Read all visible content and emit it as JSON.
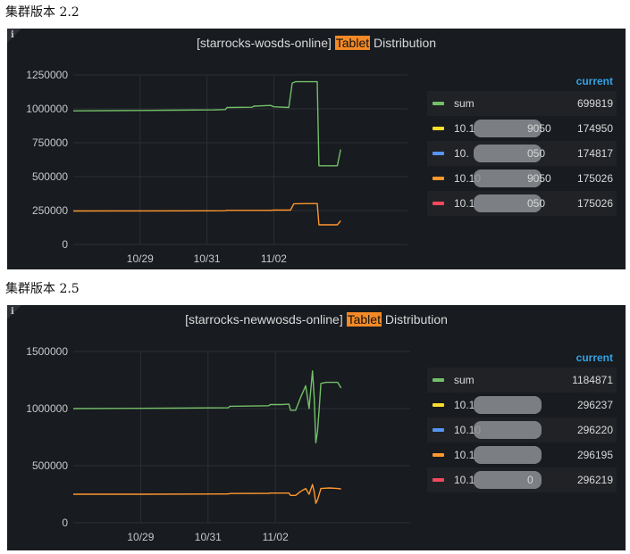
{
  "captions": [
    "集群版本 2.2",
    "集群版本 2.5"
  ],
  "chart_data": [
    {
      "type": "line",
      "title_prefix": "[starrocks-wosds-online] ",
      "title_highlight": "Tablet",
      "title_suffix": " Distribution",
      "ylim": [
        0,
        1250000
      ],
      "yticks": [
        0,
        250000,
        500000,
        750000,
        1000000,
        1250000
      ],
      "ytick_labels": [
        "0",
        "250000",
        "500000",
        "750000",
        "1000000",
        "1250000"
      ],
      "xlim": [
        0,
        10
      ],
      "xticks": [
        2,
        4,
        6
      ],
      "xtick_labels": [
        "10/29",
        "10/31",
        "11/02"
      ],
      "legend_header": "current",
      "series": [
        {
          "name": "sum",
          "color": "#73bf69",
          "current": "699819",
          "x": [
            0,
            2.0,
            3.0,
            4.2,
            4.55,
            4.6,
            5.35,
            5.4,
            5.9,
            6.0,
            6.45,
            6.55,
            6.6,
            6.65,
            6.8,
            7.3,
            7.35,
            7.45,
            7.9,
            8.0
          ],
          "y": [
            985000,
            988000,
            990000,
            992000,
            995000,
            1010000,
            1012000,
            1020000,
            1025000,
            1015000,
            1010000,
            1190000,
            1195000,
            1200000,
            1200000,
            1200000,
            580000,
            580000,
            580000,
            700000
          ]
        },
        {
          "name": "10.1",
          "name_tail": "9050",
          "color": "#fade2a",
          "current": "174950"
        },
        {
          "name": "10.",
          "name_tail": "050",
          "color": "#5794f2",
          "current": "174817"
        },
        {
          "name": "10.10",
          "name_tail": "9050",
          "color": "#ff9830",
          "current": "175026",
          "x": [
            0,
            2.0,
            4.0,
            4.55,
            4.6,
            5.9,
            6.0,
            6.5,
            6.6,
            7.0,
            7.3,
            7.35,
            7.45,
            7.9,
            8.0
          ],
          "y": [
            247000,
            247500,
            248000,
            248500,
            251000,
            251500,
            253000,
            253000,
            300000,
            301000,
            301000,
            145000,
            145000,
            145000,
            175000
          ]
        },
        {
          "name": "10.1",
          "name_tail": "050",
          "color": "#f2495c",
          "current": "175026"
        }
      ]
    },
    {
      "type": "line",
      "title_prefix": "[starrocks-newwosds-online] ",
      "title_highlight": "Tablet",
      "title_suffix": " Distribution",
      "ylim": [
        0,
        1500000
      ],
      "yticks": [
        0,
        500000,
        1000000,
        1500000
      ],
      "ytick_labels": [
        "0",
        "500000",
        "1000000",
        "1500000"
      ],
      "xlim": [
        0,
        10
      ],
      "xticks": [
        2,
        4,
        6
      ],
      "xtick_labels": [
        "10/29",
        "10/31",
        "11/02"
      ],
      "legend_header": "current",
      "series": [
        {
          "name": "sum",
          "color": "#73bf69",
          "current": "1184871",
          "x": [
            0,
            2.0,
            3.0,
            4.6,
            4.65,
            5.8,
            5.85,
            6.2,
            6.4,
            6.45,
            6.6,
            6.75,
            6.9,
            7.0,
            7.1,
            7.15,
            7.2,
            7.25,
            7.3,
            7.35,
            7.5,
            7.7,
            7.85,
            7.95
          ],
          "y": [
            1000000,
            1002000,
            1004000,
            1007000,
            1020000,
            1025000,
            1035000,
            1035000,
            1040000,
            985000,
            985000,
            1100000,
            1200000,
            1000000,
            1330000,
            1100000,
            700000,
            800000,
            1000000,
            1220000,
            1230000,
            1230000,
            1230000,
            1180000
          ]
        },
        {
          "name": "10.1",
          "name_tail": "",
          "color": "#fade2a",
          "current": "296237"
        },
        {
          "name": "10.10",
          "name_tail": "",
          "color": "#5794f2",
          "current": "296220"
        },
        {
          "name": "10.1",
          "name_tail": "",
          "color": "#ff9830",
          "current": "296195",
          "x": [
            0,
            2.0,
            4.6,
            4.65,
            5.8,
            5.85,
            6.2,
            6.4,
            6.45,
            6.6,
            6.75,
            6.9,
            7.0,
            7.1,
            7.15,
            7.2,
            7.25,
            7.35,
            7.6,
            7.85,
            7.95
          ],
          "y": [
            250000,
            250000,
            252000,
            256000,
            258000,
            260000,
            260000,
            260000,
            240000,
            240000,
            275000,
            300000,
            250000,
            335000,
            270000,
            170000,
            200000,
            300000,
            305000,
            300000,
            296000
          ]
        },
        {
          "name": "10.1",
          "name_tail": "0",
          "color": "#f2495c",
          "current": "296219"
        }
      ]
    }
  ]
}
